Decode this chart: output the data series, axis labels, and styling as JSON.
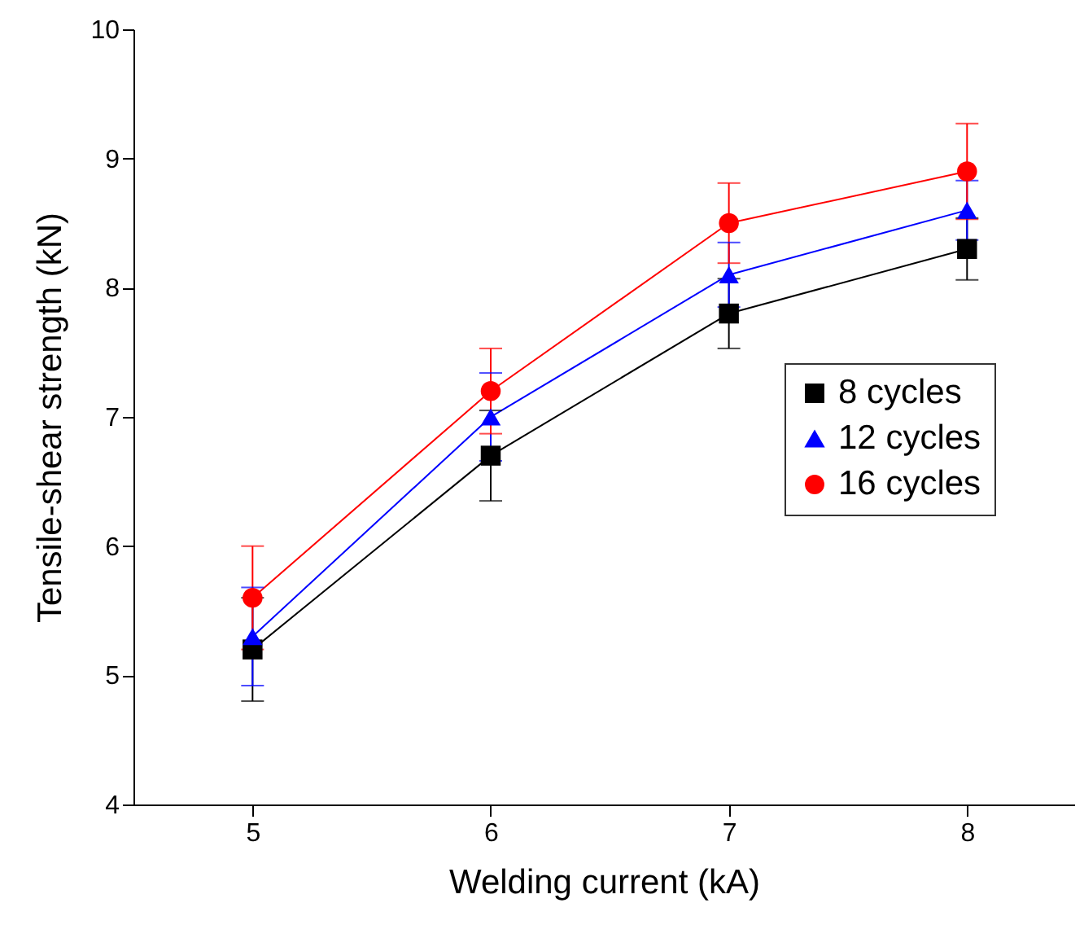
{
  "chart_data": {
    "type": "line",
    "xlabel": "Welding current (kA)",
    "ylabel": "Tensile-shear strength (kN)",
    "x": [
      5,
      6,
      7,
      8
    ],
    "xlim": [
      4.5,
      8.45
    ],
    "xticks": [
      5,
      6,
      7,
      8
    ],
    "ylim": [
      4,
      10
    ],
    "yticks": [
      4,
      5,
      6,
      7,
      8,
      9,
      10
    ],
    "grid": false,
    "legend": "right",
    "line_style": "solid",
    "series": [
      {
        "name": "8 cycles",
        "color": "#000000",
        "marker": "square",
        "values": [
          5.2,
          6.7,
          7.8,
          8.3
        ],
        "errors": [
          0.4,
          0.35,
          0.27,
          0.24
        ]
      },
      {
        "name": "12 cycles",
        "color": "#0000ff",
        "marker": "triangle",
        "values": [
          5.3,
          7.0,
          8.1,
          8.6
        ],
        "errors": [
          0.38,
          0.34,
          0.25,
          0.23
        ]
      },
      {
        "name": "16 cycles",
        "color": "#ff0000",
        "marker": "circle",
        "values": [
          5.6,
          7.2,
          8.5,
          8.9
        ],
        "errors": [
          0.4,
          0.33,
          0.31,
          0.37
        ]
      }
    ]
  }
}
